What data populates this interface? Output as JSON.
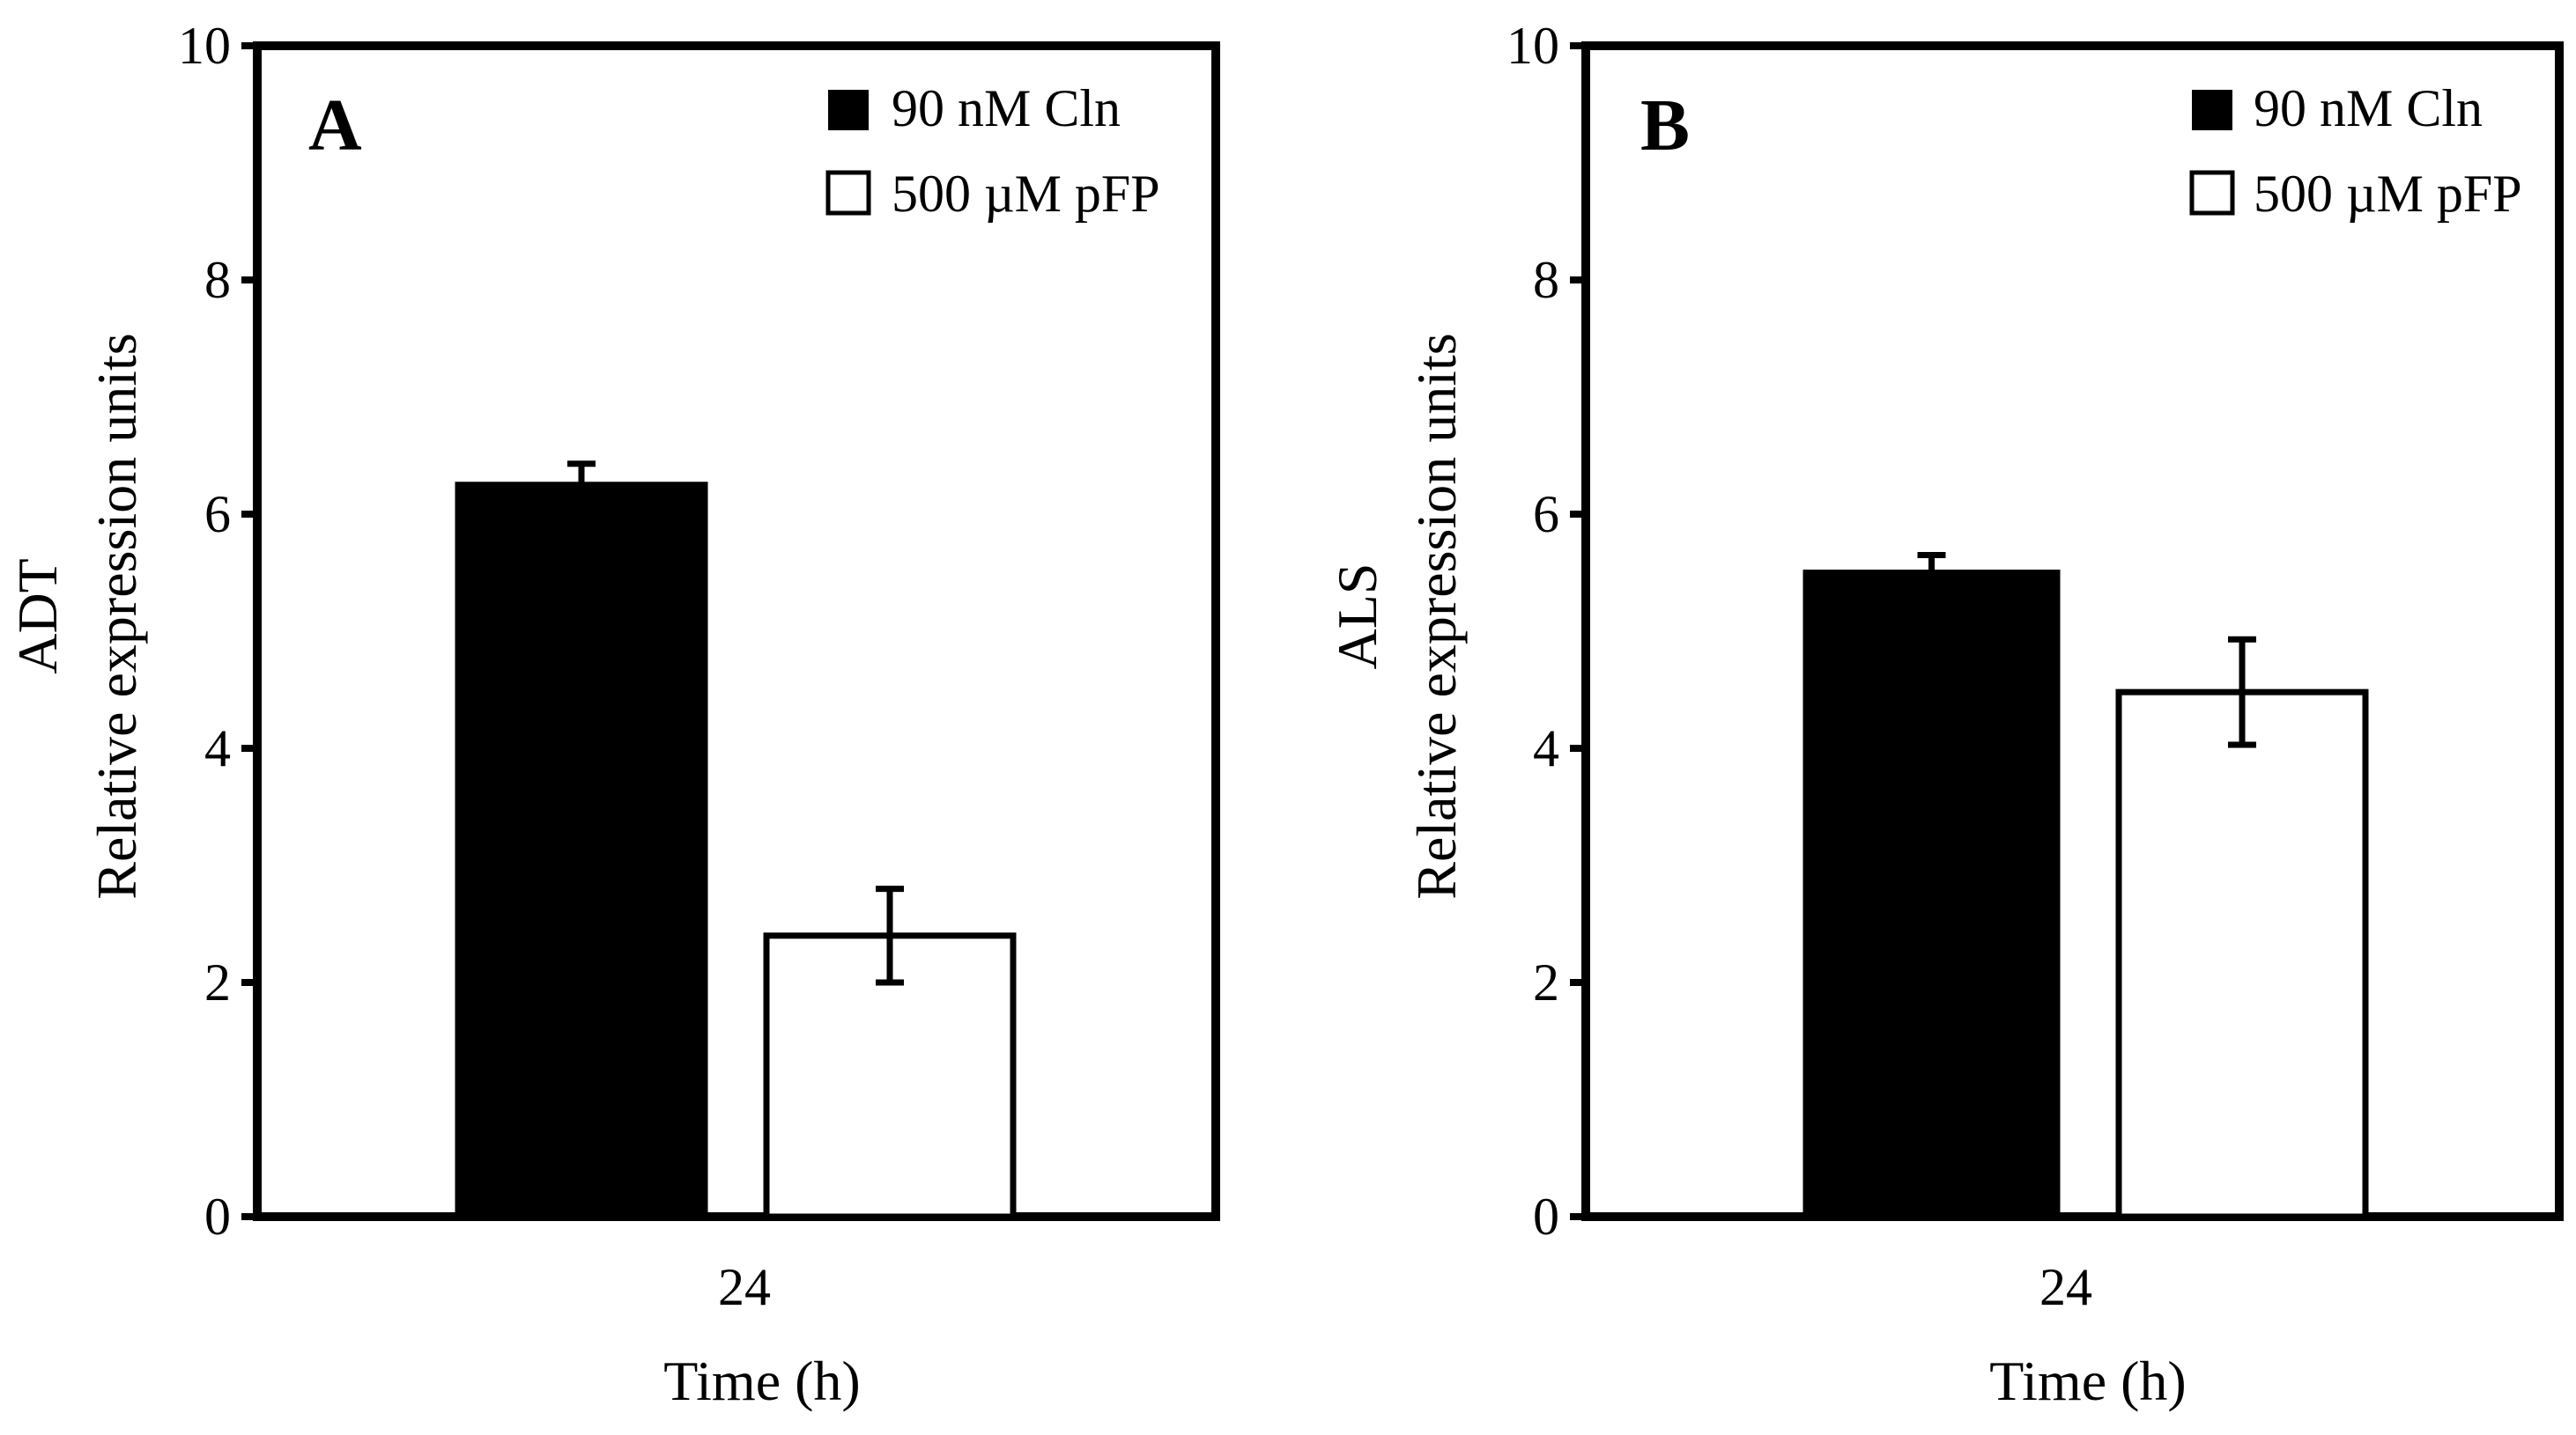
{
  "figure": {
    "colors": {
      "ink": "#000000",
      "paper": "#ffffff"
    }
  },
  "chart_data": [
    {
      "type": "bar",
      "panel": "A",
      "title": "",
      "ylabel_gene": "ADT",
      "ylabel": "Relative expression units",
      "xlabel": "Time (h)",
      "categories": [
        "24"
      ],
      "ylim": [
        0,
        10
      ],
      "yticks": [
        0,
        2,
        4,
        6,
        8,
        10
      ],
      "legend_position": "top-right",
      "series": [
        {
          "name": "90 nM Cln",
          "fill": "#000000",
          "values": [
            6.25
          ],
          "errors": [
            0.18
          ]
        },
        {
          "name": "500 µM pFP",
          "fill": "#ffffff",
          "values": [
            2.4
          ],
          "errors": [
            0.4
          ]
        }
      ]
    },
    {
      "type": "bar",
      "panel": "B",
      "title": "",
      "ylabel_gene": "ALS",
      "ylabel": "Relative expression units",
      "xlabel": "Time (h)",
      "categories": [
        "24"
      ],
      "ylim": [
        0,
        10
      ],
      "yticks": [
        0,
        2,
        4,
        6,
        8,
        10
      ],
      "legend_position": "top-right",
      "series": [
        {
          "name": "90 nM Cln",
          "fill": "#000000",
          "values": [
            5.5
          ],
          "errors": [
            0.15
          ]
        },
        {
          "name": "500 µM pFP",
          "fill": "#ffffff",
          "values": [
            4.48
          ],
          "errors": [
            0.45
          ]
        }
      ]
    }
  ]
}
